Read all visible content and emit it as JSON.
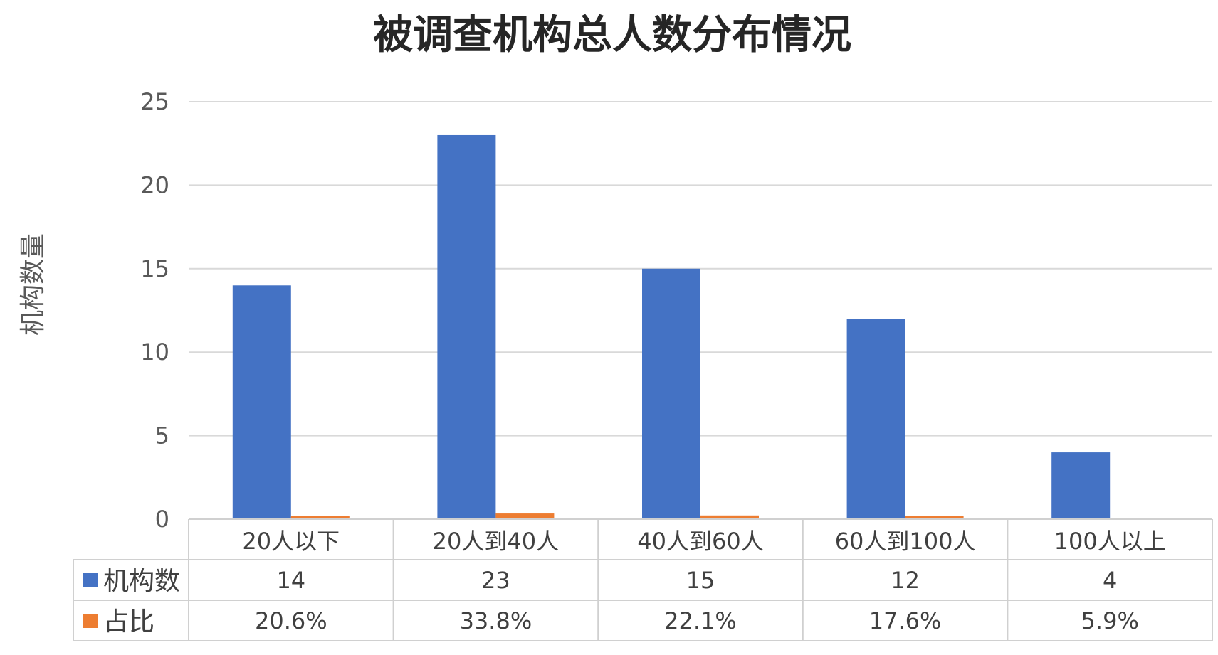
{
  "chart_data": {
    "type": "bar",
    "title": "被调查机构总人数分布情况",
    "ylabel": "机构数量",
    "xlabel": "",
    "ylim": [
      0,
      25
    ],
    "yticks": [
      0,
      5,
      10,
      15,
      20,
      25
    ],
    "grid": true,
    "legend": "data-table",
    "categories": [
      "20人以下",
      "20人到40人",
      "40人到60人",
      "60人到100人",
      "100人以上"
    ],
    "series": [
      {
        "name": "机构数",
        "color": "#4472C4",
        "values": [
          14,
          23,
          15,
          12,
          4
        ],
        "labels": [
          "14",
          "23",
          "15",
          "12",
          "4"
        ]
      },
      {
        "name": "占比",
        "color": "#ED7D31",
        "values": [
          0.206,
          0.338,
          0.221,
          0.176,
          0.059
        ],
        "labels": [
          "20.6%",
          "33.8%",
          "22.1%",
          "17.6%",
          "5.9%"
        ]
      }
    ]
  }
}
